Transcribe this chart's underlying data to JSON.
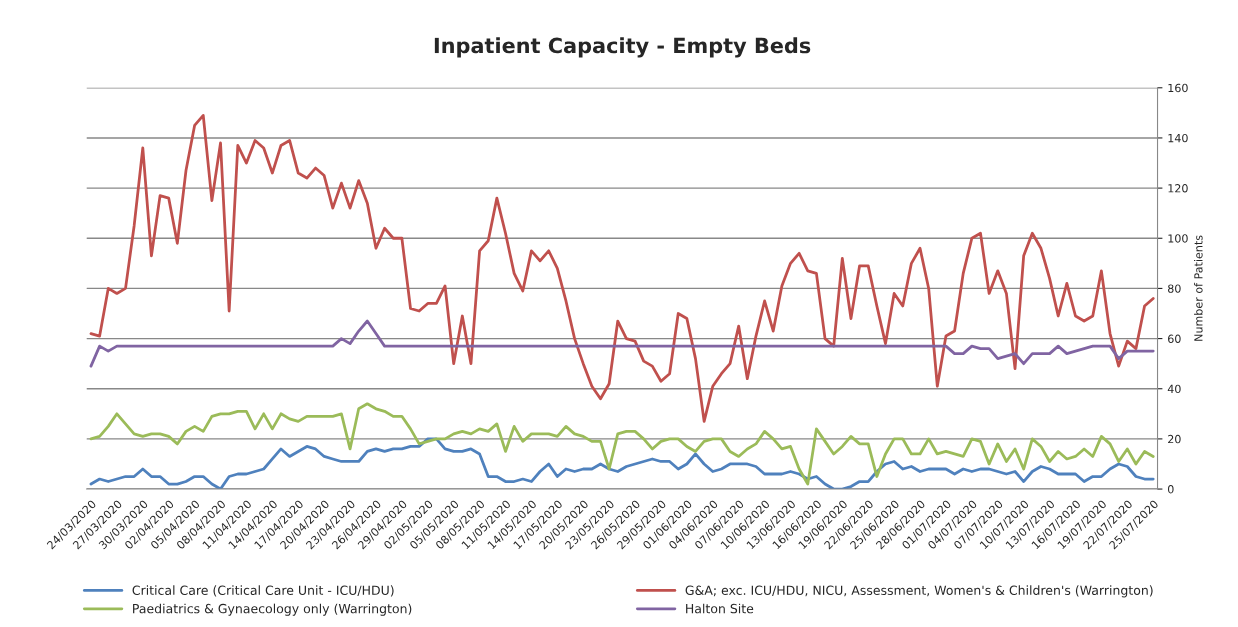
{
  "chart_data": {
    "type": "line",
    "title": "Inpatient Capacity - Empty Beds",
    "ylabel": "Number of Patients",
    "categories": [
      "24/03/2020",
      null,
      null,
      "27/03/2020",
      null,
      null,
      "30/03/2020",
      null,
      null,
      "02/04/2020",
      null,
      null,
      "05/04/2020",
      null,
      null,
      "08/04/2020",
      null,
      null,
      "11/04/2020",
      null,
      null,
      "14/04/2020",
      null,
      null,
      "17/04/2020",
      null,
      null,
      "20/04/2020",
      null,
      null,
      "23/04/2020",
      null,
      null,
      "26/04/2020",
      null,
      null,
      "29/04/2020",
      null,
      null,
      "02/05/2020",
      null,
      null,
      "05/05/2020",
      null,
      null,
      "08/05/2020",
      null,
      null,
      "11/05/2020",
      null,
      null,
      "14/05/2020",
      null,
      null,
      "17/05/2020",
      null,
      null,
      "20/05/2020",
      null,
      null,
      "23/05/2020",
      null,
      null,
      "26/05/2020",
      null,
      null,
      "29/05/2020",
      null,
      null,
      "01/06/2020",
      null,
      null,
      "04/06/2020",
      null,
      null,
      "07/06/2020",
      null,
      null,
      "10/06/2020",
      null,
      null,
      "13/06/2020",
      null,
      null,
      "16/06/2020",
      null,
      null,
      "19/06/2020",
      null,
      null,
      "22/06/2020",
      null,
      null,
      "25/06/2020",
      null,
      null,
      "28/06/2020",
      null,
      null,
      "01/07/2020",
      null,
      null,
      "04/07/2020",
      null,
      null,
      "07/07/2020",
      null,
      null,
      "10/07/2020",
      null,
      null,
      "13/07/2020",
      null,
      null,
      "16/07/2020",
      null,
      null,
      "19/07/2020",
      null,
      null,
      "22/07/2020",
      null,
      null,
      "25/07/2020"
    ],
    "series": [
      {
        "name": "Critical Care (Critical Care Unit - ICU/HDU)",
        "color": "#4f81bd",
        "values": [
          2,
          4,
          3,
          4,
          5,
          5,
          8,
          5,
          5,
          2,
          2,
          3,
          5,
          5,
          2,
          0,
          5,
          6,
          6,
          7,
          8,
          12,
          16,
          13,
          15,
          17,
          16,
          13,
          12,
          11,
          11,
          11,
          15,
          16,
          15,
          16,
          16,
          17,
          17,
          20,
          20,
          16,
          15,
          15,
          16,
          14,
          5,
          5,
          3,
          3,
          4,
          3,
          7,
          10,
          5,
          8,
          7,
          8,
          8,
          10,
          8,
          7,
          9,
          10,
          11,
          12,
          11,
          11,
          8,
          10,
          14,
          10,
          7,
          8,
          10,
          10,
          10,
          9,
          6,
          6,
          6,
          7,
          6,
          4,
          5,
          2,
          0,
          0,
          1,
          3,
          3,
          7,
          10,
          11,
          8,
          9,
          7,
          8,
          8,
          8,
          6,
          8,
          7,
          8,
          8,
          7,
          6,
          7,
          3,
          7,
          9,
          8,
          6,
          6,
          6,
          3,
          5,
          5,
          8,
          10,
          9,
          5,
          4,
          4
        ]
      },
      {
        "name": "G&A; exc. ICU/HDU, NICU, Assessment, Women's & Children's (Warrington)",
        "color": "#c0504d",
        "values": [
          62,
          61,
          80,
          78,
          80,
          105,
          136,
          93,
          117,
          116,
          98,
          127,
          145,
          149,
          115,
          138,
          71,
          137,
          130,
          139,
          136,
          126,
          137,
          139,
          126,
          124,
          128,
          125,
          112,
          122,
          112,
          123,
          114,
          96,
          104,
          100,
          100,
          72,
          71,
          74,
          74,
          81,
          50,
          69,
          50,
          95,
          99,
          116,
          102,
          86,
          79,
          95,
          91,
          95,
          88,
          75,
          60,
          50,
          41,
          36,
          42,
          67,
          60,
          59,
          51,
          49,
          43,
          46,
          70,
          68,
          52,
          27,
          41,
          46,
          50,
          65,
          44,
          61,
          75,
          63,
          81,
          90,
          94,
          87,
          86,
          60,
          57,
          92,
          68,
          89,
          89,
          73,
          58,
          78,
          73,
          90,
          96,
          80,
          41,
          61,
          63,
          86,
          100,
          102,
          78,
          87,
          78,
          48,
          93,
          102,
          96,
          84,
          69,
          82,
          69,
          67,
          69,
          87,
          62,
          49,
          59,
          56,
          73,
          76
        ]
      },
      {
        "name": "Paediatrics & Gynaecology only (Warrington)",
        "color": "#9bbb59",
        "values": [
          20,
          21,
          25,
          30,
          26,
          22,
          21,
          22,
          22,
          21,
          18,
          23,
          25,
          23,
          29,
          30,
          30,
          31,
          31,
          24,
          30,
          24,
          30,
          28,
          27,
          29,
          29,
          29,
          29,
          30,
          16,
          32,
          34,
          32,
          31,
          29,
          29,
          24,
          18,
          19,
          20,
          20,
          22,
          23,
          22,
          24,
          23,
          26,
          15,
          25,
          19,
          22,
          22,
          22,
          21,
          25,
          22,
          21,
          19,
          19,
          8,
          22,
          23,
          23,
          20,
          16,
          19,
          20,
          20,
          17,
          15,
          19,
          20,
          20,
          15,
          13,
          16,
          18,
          23,
          20,
          16,
          17,
          8,
          2,
          24,
          19,
          14,
          17,
          21,
          18,
          18,
          5,
          14,
          20,
          20,
          14,
          14,
          20,
          14,
          15,
          14,
          13,
          20,
          19,
          10,
          18,
          11,
          16,
          8,
          20,
          17,
          11,
          15,
          12,
          13,
          16,
          13,
          21,
          18,
          11,
          16,
          10,
          15,
          13
        ]
      },
      {
        "name": "Halton Site",
        "color": "#8064a2",
        "values": [
          49,
          57,
          55,
          57,
          57,
          57,
          57,
          57,
          57,
          57,
          57,
          57,
          57,
          57,
          57,
          57,
          57,
          57,
          57,
          57,
          57,
          57,
          57,
          57,
          57,
          57,
          57,
          57,
          57,
          60,
          58,
          63,
          67,
          62,
          57,
          57,
          57,
          57,
          57,
          57,
          57,
          57,
          57,
          57,
          57,
          57,
          57,
          57,
          57,
          57,
          57,
          57,
          57,
          57,
          57,
          57,
          57,
          57,
          57,
          57,
          57,
          57,
          57,
          57,
          57,
          57,
          57,
          57,
          57,
          57,
          57,
          57,
          57,
          57,
          57,
          57,
          57,
          57,
          57,
          57,
          57,
          57,
          57,
          57,
          57,
          57,
          57,
          57,
          57,
          57,
          57,
          57,
          57,
          57,
          57,
          57,
          57,
          57,
          57,
          57,
          54,
          54,
          57,
          56,
          56,
          52,
          53,
          54,
          50,
          54,
          54,
          54,
          57,
          54,
          55,
          56,
          57,
          57,
          57,
          52,
          55,
          55,
          55,
          55
        ]
      }
    ],
    "ylim": [
      0,
      160
    ],
    "yticks": [
      0,
      20,
      40,
      60,
      80,
      100,
      120,
      140,
      160
    ],
    "grid": "y",
    "legend": "bottom",
    "marker": "none",
    "line_style": "solid"
  }
}
